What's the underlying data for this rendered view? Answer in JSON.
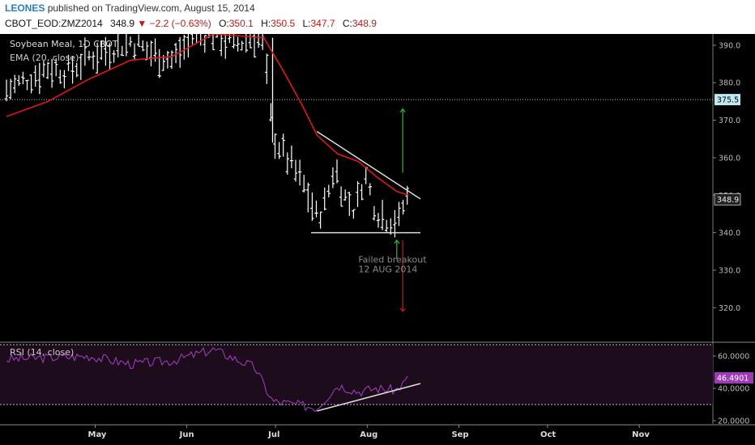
{
  "header": {
    "author": "LEONES",
    "published_text": "published on TradingView.com, August 15, 2014",
    "symbol": "CBOT_EOD:ZMZ2014",
    "last": "348.9",
    "change": "−2.2 (−0.63%)",
    "open_label": "O:",
    "open": "350.1",
    "high_label": "H:",
    "high": "350.5",
    "low_label": "L:",
    "low": "347.7",
    "close_label": "C:",
    "close": "348.9"
  },
  "chart_data": [
    {
      "type": "ohlc",
      "title": "Soybean Meal, 1D CBOT",
      "indicator_label": "EMA (20, close)",
      "ylim": [
        311,
        393
      ],
      "y_ticks": [
        "390.0",
        "380.0",
        "370.0",
        "360.0",
        "350.0",
        "340.0",
        "330.0",
        "320.0"
      ],
      "x_ticks": [
        "May",
        "Jun",
        "Jul",
        "Aug",
        "Sep",
        "Oct",
        "Nov"
      ],
      "price_tags": [
        "375.5",
        "348.9"
      ],
      "reference_level": 375.5,
      "price_path": [
        {
          "d": "2014-04-01",
          "v": 378
        },
        {
          "d": "2014-04-08",
          "v": 381
        },
        {
          "d": "2014-04-15",
          "v": 384
        },
        {
          "d": "2014-04-22",
          "v": 383
        },
        {
          "d": "2014-04-29",
          "v": 387
        },
        {
          "d": "2014-05-06",
          "v": 389
        },
        {
          "d": "2014-05-13",
          "v": 391
        },
        {
          "d": "2014-05-20",
          "v": 388
        },
        {
          "d": "2014-05-27",
          "v": 386
        },
        {
          "d": "2014-06-03",
          "v": 392
        },
        {
          "d": "2014-06-10",
          "v": 393
        },
        {
          "d": "2014-06-17",
          "v": 390
        },
        {
          "d": "2014-06-24",
          "v": 392
        },
        {
          "d": "2014-06-27",
          "v": 390
        },
        {
          "d": "2014-06-30",
          "v": 366
        },
        {
          "d": "2014-07-03",
          "v": 362
        },
        {
          "d": "2014-07-08",
          "v": 356
        },
        {
          "d": "2014-07-11",
          "v": 352
        },
        {
          "d": "2014-07-15",
          "v": 344
        },
        {
          "d": "2014-07-18",
          "v": 348
        },
        {
          "d": "2014-07-21",
          "v": 358
        },
        {
          "d": "2014-07-24",
          "v": 350
        },
        {
          "d": "2014-07-28",
          "v": 346
        },
        {
          "d": "2014-07-31",
          "v": 356
        },
        {
          "d": "2014-08-04",
          "v": 346
        },
        {
          "d": "2014-08-07",
          "v": 344
        },
        {
          "d": "2014-08-12",
          "v": 343
        },
        {
          "d": "2014-08-14",
          "v": 350
        },
        {
          "d": "2014-08-15",
          "v": 348.9
        }
      ],
      "ema": [
        {
          "d": "2014-04-01",
          "v": 371
        },
        {
          "d": "2014-04-15",
          "v": 375
        },
        {
          "d": "2014-04-29",
          "v": 381
        },
        {
          "d": "2014-05-13",
          "v": 386
        },
        {
          "d": "2014-05-27",
          "v": 387
        },
        {
          "d": "2014-06-10",
          "v": 393
        },
        {
          "d": "2014-06-27",
          "v": 392
        },
        {
          "d": "2014-07-03",
          "v": 384
        },
        {
          "d": "2014-07-10",
          "v": 374
        },
        {
          "d": "2014-07-15",
          "v": 366
        },
        {
          "d": "2014-07-22",
          "v": 361
        },
        {
          "d": "2014-07-29",
          "v": 359
        },
        {
          "d": "2014-08-04",
          "v": 355
        },
        {
          "d": "2014-08-11",
          "v": 351
        },
        {
          "d": "2014-08-15",
          "v": 350
        }
      ],
      "trendlines": [
        {
          "from": {
            "d": "2014-07-15",
            "v": 367
          },
          "to": {
            "d": "2014-08-19",
            "v": 349
          }
        },
        {
          "from": {
            "d": "2014-07-13",
            "v": 340
          },
          "to": {
            "d": "2014-08-19",
            "v": 340
          }
        }
      ],
      "arrows": [
        {
          "color": "#22c422",
          "from": {
            "d": "2014-08-13",
            "v": 356
          },
          "to": {
            "d": "2014-08-13",
            "v": 373
          }
        },
        {
          "color": "#d01818",
          "from": {
            "d": "2014-08-13",
            "v": 338
          },
          "to": {
            "d": "2014-08-13",
            "v": 319
          }
        },
        {
          "color": "#22c422",
          "from": {
            "d": "2014-08-11",
            "v": 333
          },
          "to": {
            "d": "2014-08-11",
            "v": 338
          }
        }
      ],
      "annotation": {
        "lines": [
          "Failed breakout",
          "12 AUG 2014"
        ],
        "d": "2014-07-29",
        "v": 332
      }
    },
    {
      "type": "line",
      "title": "RSI (14, close)",
      "ylim": [
        18,
        68
      ],
      "y_ticks": [
        "60.0000",
        "40.0000",
        "20.0000"
      ],
      "bands": [
        30,
        70
      ],
      "value_tag": "46.4901",
      "series": [
        {
          "d": "2014-04-01",
          "v": 58
        },
        {
          "d": "2014-04-15",
          "v": 59
        },
        {
          "d": "2014-04-29",
          "v": 60
        },
        {
          "d": "2014-05-13",
          "v": 55
        },
        {
          "d": "2014-05-27",
          "v": 57
        },
        {
          "d": "2014-06-10",
          "v": 64
        },
        {
          "d": "2014-06-24",
          "v": 53
        },
        {
          "d": "2014-06-30",
          "v": 32
        },
        {
          "d": "2014-07-08",
          "v": 30
        },
        {
          "d": "2014-07-15",
          "v": 28
        },
        {
          "d": "2014-07-22",
          "v": 42
        },
        {
          "d": "2014-07-29",
          "v": 38
        },
        {
          "d": "2014-08-04",
          "v": 40
        },
        {
          "d": "2014-08-11",
          "v": 39
        },
        {
          "d": "2014-08-15",
          "v": 46.49
        }
      ],
      "trendline": {
        "from": {
          "d": "2014-07-15",
          "v": 26
        },
        "to": {
          "d": "2014-08-19",
          "v": 43
        }
      }
    }
  ]
}
